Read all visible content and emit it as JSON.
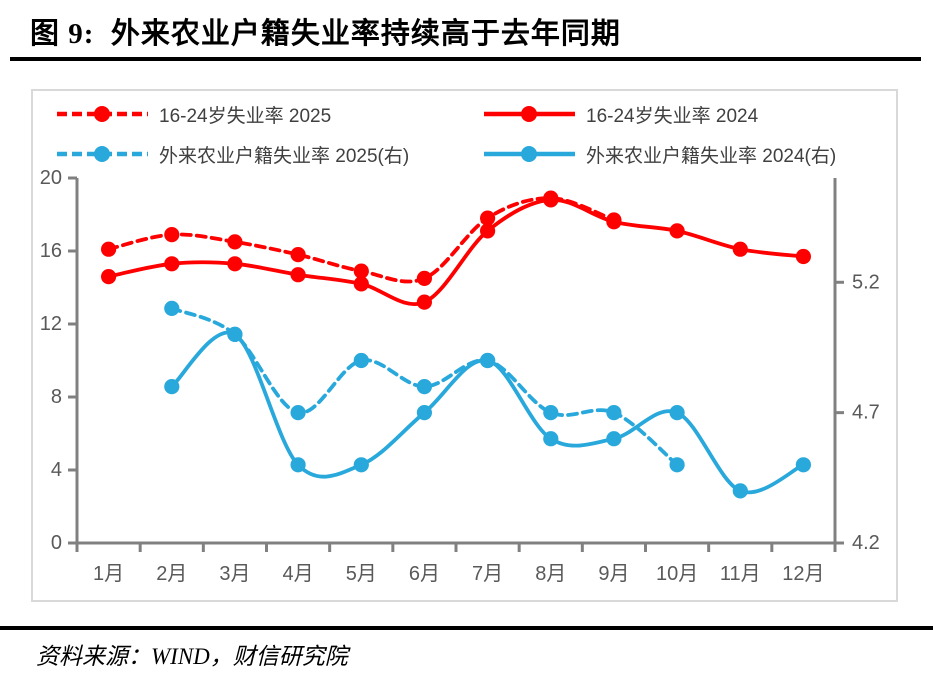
{
  "title": "图 9:  外来农业户籍失业率持续高于去年同期",
  "source": "资料来源：WIND，财信研究院",
  "colors": {
    "red_series": "#ff0000",
    "blue_series": "#29a8dc",
    "axis": "#808080",
    "tick_label": "#595959",
    "panel_border": "#d9d9d9",
    "legend_text": "#404040",
    "title_text": "#000000"
  },
  "chart_data": {
    "type": "line",
    "title": "图 9: 外来农业户籍失业率持续高于去年同期",
    "categories": [
      "1月",
      "2月",
      "3月",
      "4月",
      "5月",
      "6月",
      "7月",
      "8月",
      "9月",
      "10月",
      "11月",
      "12月"
    ],
    "series": [
      {
        "name": "16-24岁失业率 2025",
        "axis": "left",
        "color": "#ff0000",
        "style": "dashed",
        "values": [
          16.1,
          16.9,
          16.5,
          15.8,
          14.9,
          14.5,
          17.8,
          18.9,
          17.7,
          null,
          null,
          null
        ]
      },
      {
        "name": "16-24岁失业率 2024",
        "axis": "left",
        "color": "#ff0000",
        "style": "solid",
        "values": [
          14.6,
          15.3,
          15.3,
          14.7,
          14.2,
          13.2,
          17.1,
          18.8,
          17.6,
          17.1,
          16.1,
          15.7
        ]
      },
      {
        "name": "外来农业户籍失业率 2025(右)",
        "axis": "right",
        "color": "#29a8dc",
        "style": "dashed",
        "values": [
          null,
          5.1,
          5.0,
          4.7,
          4.9,
          4.8,
          4.9,
          4.7,
          4.7,
          4.5,
          null,
          null
        ]
      },
      {
        "name": "外来农业户籍失业率 2024(右)",
        "axis": "right",
        "color": "#29a8dc",
        "style": "solid",
        "values": [
          null,
          4.8,
          5.0,
          4.5,
          4.5,
          4.7,
          4.9,
          4.6,
          4.6,
          4.7,
          4.4,
          4.5
        ]
      }
    ],
    "left_axis": {
      "ticks": [
        0,
        4,
        8,
        12,
        16,
        20
      ],
      "range": [
        0,
        20
      ]
    },
    "right_axis": {
      "ticks": [
        4.2,
        4.7,
        5.2
      ],
      "range": [
        4.2,
        5.6
      ]
    },
    "xlabel": "",
    "ylabel": "",
    "grid": false,
    "smooth_lines": true,
    "legend_position": "top"
  }
}
